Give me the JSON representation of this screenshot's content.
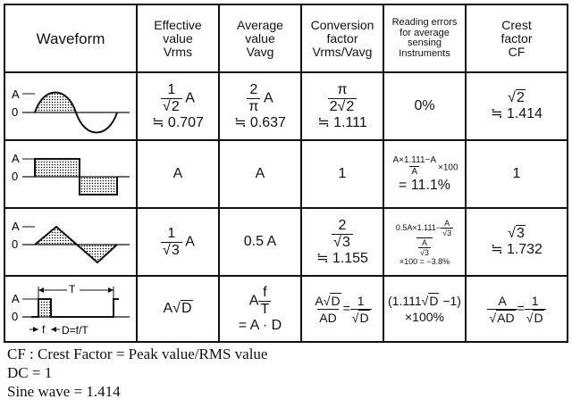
{
  "table": {
    "headers": {
      "waveform": "Waveform",
      "effective": [
        "Effective",
        "value",
        "Vrms"
      ],
      "average": [
        "Average",
        "value",
        "Vavg"
      ],
      "conversion": [
        "Conversion",
        "factor",
        "Vrms/Vavg"
      ],
      "reading": [
        "Reading errors",
        "for average",
        "sensing",
        "Instruments"
      ],
      "crest": [
        "Crest",
        "factor",
        "CF"
      ]
    },
    "axis": {
      "a": "A",
      "zero": "0"
    },
    "square_wave_labels": {
      "t": "T",
      "f": "f",
      "d": "D=f/T"
    },
    "rows": [
      {
        "name": "sine",
        "effective": {
          "num": "1",
          "den_sqrt": "2",
          "suffix": "A",
          "approx": "≒ 0.707"
        },
        "average": {
          "num": "2",
          "den": "π",
          "suffix": "A",
          "approx": "≒ 0.637"
        },
        "conversion": {
          "num": "π",
          "den_pre": "2",
          "den_sqrt": "2",
          "approx": "≒ 1.111"
        },
        "reading": "0%",
        "crest": {
          "sqrt": "2",
          "approx": "≒ 1.414"
        }
      },
      {
        "name": "square",
        "effective": "A",
        "average": "A",
        "conversion": "1",
        "reading": {
          "num": "A×1.111−A",
          "den": "A",
          "suffix": "×100",
          "result": "= 11.1%"
        },
        "crest": "1"
      },
      {
        "name": "triangle",
        "effective": {
          "num": "1",
          "den_sqrt": "3",
          "suffix": "A"
        },
        "average": "0.5 A",
        "conversion": {
          "num": "2",
          "den_sqrt": "3",
          "approx": "≒ 1.155"
        },
        "reading": {
          "num_pre": "0.5A×1.111−",
          "num_frac_num": "A",
          "num_frac_den_sqrt": "3",
          "den_num": "A",
          "den_den_sqrt": "3",
          "suffix": "×100 = −3.8%"
        },
        "crest": {
          "sqrt": "3",
          "approx": "≒ 1.732"
        }
      },
      {
        "name": "pulse",
        "effective": {
          "pre": "A",
          "sqrt": "D"
        },
        "average": {
          "pre": "A",
          "num": "f",
          "den": "T",
          "line2": "= A · D"
        },
        "conversion": {
          "num_pre": "A",
          "num_sqrt": "D",
          "den": "AD",
          "eq": "=",
          "rnum": "1",
          "rden_sqrt": "D"
        },
        "reading": {
          "line1_pre": "(1.111",
          "line1_sqrt": "D",
          "line1_post": " −1)",
          "line2": "×100%"
        },
        "crest": {
          "num": "A",
          "den_sqrt": "AD",
          "eq": "=",
          "rnum": "1",
          "rden_sqrt": "D"
        }
      }
    ]
  },
  "notes": [
    "CF : Crest Factor = Peak value/RMS value",
    "DC = 1",
    "Sine wave = 1.414"
  ]
}
